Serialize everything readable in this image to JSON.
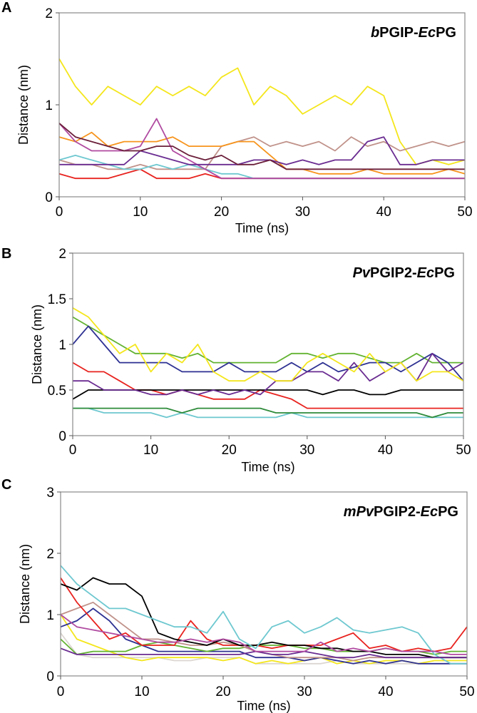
{
  "chart_data": [
    {
      "type": "line",
      "panel_label": "A",
      "title_parts": [
        {
          "text": "b",
          "italic": true
        },
        {
          "text": "PGIP-",
          "italic": false
        },
        {
          "text": "Ec",
          "italic": true
        },
        {
          "text": "PG",
          "italic": false
        }
      ],
      "xlabel": "Time (ns)",
      "ylabel": "Distance (nm)",
      "xlim": [
        0,
        50
      ],
      "ylim": [
        0,
        2
      ],
      "xticks": [
        0,
        10,
        20,
        30,
        40,
        50
      ],
      "yticks": [
        0,
        1,
        2
      ],
      "grid": false,
      "x": [
        0,
        2,
        4,
        6,
        8,
        10,
        12,
        14,
        16,
        18,
        20,
        22,
        24,
        26,
        28,
        30,
        32,
        34,
        36,
        38,
        40,
        42,
        44,
        46,
        48,
        50
      ],
      "series": [
        {
          "color": "#f4e61c",
          "values": [
            1.5,
            1.2,
            1.0,
            1.2,
            1.1,
            1.0,
            1.2,
            1.1,
            1.2,
            1.1,
            1.3,
            1.4,
            1.0,
            1.2,
            1.1,
            0.9,
            1.0,
            1.1,
            1.0,
            1.2,
            1.1,
            0.6,
            0.35,
            0.4,
            0.35,
            0.4
          ]
        },
        {
          "color": "#c0928a",
          "values": [
            0.4,
            0.35,
            0.35,
            0.3,
            0.3,
            0.35,
            0.3,
            0.3,
            0.3,
            0.3,
            0.55,
            0.6,
            0.65,
            0.55,
            0.6,
            0.55,
            0.6,
            0.5,
            0.65,
            0.55,
            0.6,
            0.5,
            0.55,
            0.6,
            0.55,
            0.6
          ]
        },
        {
          "color": "#f7941d",
          "values": [
            0.65,
            0.6,
            0.7,
            0.55,
            0.6,
            0.6,
            0.6,
            0.65,
            0.55,
            0.55,
            0.55,
            0.6,
            0.6,
            0.45,
            0.3,
            0.3,
            0.25,
            0.25,
            0.25,
            0.3,
            0.25,
            0.25,
            0.25,
            0.25,
            0.3,
            0.25
          ]
        },
        {
          "color": "#e8231f",
          "values": [
            0.25,
            0.2,
            0.2,
            0.2,
            0.25,
            0.3,
            0.2,
            0.2,
            0.2,
            0.25,
            0.2,
            0.2,
            0.2,
            0.2,
            0.2,
            0.2,
            0.2,
            0.2,
            0.2,
            0.2,
            0.2,
            0.2,
            0.2,
            0.2,
            0.2,
            0.2
          ]
        },
        {
          "color": "#6ec8d0",
          "values": [
            0.4,
            0.45,
            0.4,
            0.35,
            0.3,
            0.3,
            0.35,
            0.3,
            0.35,
            0.3,
            0.25,
            0.25,
            0.2,
            0.2,
            0.2,
            0.2,
            0.2,
            0.2,
            0.2,
            0.2,
            0.2,
            0.2,
            0.2,
            0.2,
            0.2,
            0.2
          ]
        },
        {
          "color": "#b04aa0",
          "values": [
            0.8,
            0.6,
            0.5,
            0.5,
            0.5,
            0.55,
            0.85,
            0.5,
            0.4,
            0.3,
            0.2,
            0.2,
            0.2,
            0.2,
            0.2,
            0.2,
            0.2,
            0.2,
            0.2,
            0.2,
            0.2,
            0.2,
            0.2,
            0.2,
            0.2,
            0.2
          ]
        },
        {
          "color": "#6a2c91",
          "values": [
            0.35,
            0.35,
            0.35,
            0.35,
            0.35,
            0.5,
            0.45,
            0.4,
            0.35,
            0.35,
            0.35,
            0.35,
            0.4,
            0.4,
            0.35,
            0.4,
            0.35,
            0.4,
            0.4,
            0.6,
            0.65,
            0.35,
            0.35,
            0.4,
            0.4,
            0.4
          ]
        },
        {
          "color": "#6b1f3a",
          "values": [
            0.8,
            0.65,
            0.6,
            0.55,
            0.5,
            0.5,
            0.55,
            0.55,
            0.45,
            0.4,
            0.45,
            0.35,
            0.35,
            0.4,
            0.3,
            0.3,
            0.3,
            0.3,
            0.3,
            0.3,
            0.3,
            0.3,
            0.3,
            0.3,
            0.3,
            0.3
          ]
        }
      ]
    },
    {
      "type": "line",
      "panel_label": "B",
      "title_parts": [
        {
          "text": "Pv",
          "italic": true
        },
        {
          "text": "PGIP2-",
          "italic": false
        },
        {
          "text": "Ec",
          "italic": true
        },
        {
          "text": "PG",
          "italic": false
        }
      ],
      "xlabel": "Time (ns)",
      "ylabel": "Distance (nm)",
      "xlim": [
        0,
        50
      ],
      "ylim": [
        0,
        2
      ],
      "xticks": [
        0,
        10,
        20,
        30,
        40,
        50
      ],
      "yticks": [
        0,
        0.5,
        1,
        1.5,
        2
      ],
      "grid": false,
      "x": [
        0,
        2,
        4,
        6,
        8,
        10,
        12,
        14,
        16,
        18,
        20,
        22,
        24,
        26,
        28,
        30,
        32,
        34,
        36,
        38,
        40,
        42,
        44,
        46,
        48,
        50
      ],
      "series": [
        {
          "color": "#6ec8d0",
          "values": [
            0.3,
            0.3,
            0.25,
            0.25,
            0.25,
            0.25,
            0.2,
            0.25,
            0.2,
            0.2,
            0.2,
            0.2,
            0.2,
            0.2,
            0.25,
            0.2,
            0.2,
            0.2,
            0.2,
            0.2,
            0.2,
            0.2,
            0.2,
            0.2,
            0.2,
            0.2
          ]
        },
        {
          "color": "#2e8b3a",
          "values": [
            0.3,
            0.3,
            0.3,
            0.3,
            0.3,
            0.3,
            0.3,
            0.25,
            0.3,
            0.3,
            0.3,
            0.3,
            0.3,
            0.25,
            0.25,
            0.25,
            0.25,
            0.25,
            0.25,
            0.25,
            0.25,
            0.25,
            0.25,
            0.2,
            0.25,
            0.25
          ]
        },
        {
          "color": "#62b332",
          "values": [
            1.3,
            1.2,
            1.1,
            1.0,
            0.9,
            0.9,
            0.9,
            0.85,
            0.9,
            0.8,
            0.8,
            0.8,
            0.8,
            0.8,
            0.9,
            0.9,
            0.85,
            0.9,
            0.9,
            0.85,
            0.8,
            0.8,
            0.9,
            0.8,
            0.8,
            0.8
          ]
        },
        {
          "color": "#e8231f",
          "values": [
            0.8,
            0.7,
            0.7,
            0.6,
            0.5,
            0.5,
            0.45,
            0.5,
            0.45,
            0.4,
            0.4,
            0.4,
            0.5,
            0.45,
            0.4,
            0.3,
            0.3,
            0.3,
            0.3,
            0.3,
            0.3,
            0.3,
            0.3,
            0.3,
            0.3,
            0.3
          ]
        },
        {
          "color": "#000000",
          "values": [
            0.4,
            0.5,
            0.5,
            0.5,
            0.5,
            0.5,
            0.5,
            0.5,
            0.5,
            0.5,
            0.5,
            0.5,
            0.5,
            0.5,
            0.5,
            0.5,
            0.45,
            0.5,
            0.5,
            0.45,
            0.45,
            0.5,
            0.5,
            0.5,
            0.5,
            0.5
          ]
        },
        {
          "color": "#2e3192",
          "values": [
            1.0,
            1.2,
            1.0,
            0.8,
            0.8,
            0.8,
            0.8,
            0.7,
            0.7,
            0.7,
            0.8,
            0.7,
            0.7,
            0.7,
            0.8,
            0.7,
            0.8,
            0.7,
            0.75,
            0.8,
            0.8,
            0.7,
            0.8,
            0.9,
            0.8,
            0.6
          ]
        },
        {
          "color": "#6a2c91",
          "values": [
            0.6,
            0.6,
            0.5,
            0.5,
            0.5,
            0.45,
            0.45,
            0.5,
            0.45,
            0.5,
            0.45,
            0.5,
            0.45,
            0.6,
            0.6,
            0.7,
            0.7,
            0.6,
            0.8,
            0.6,
            0.7,
            0.8,
            0.6,
            0.9,
            0.7,
            0.8
          ]
        },
        {
          "color": "#f4e61c",
          "values": [
            1.4,
            1.3,
            1.1,
            0.9,
            1.0,
            0.7,
            0.9,
            0.8,
            1.0,
            0.7,
            0.6,
            0.6,
            0.7,
            0.6,
            0.6,
            0.8,
            0.9,
            0.8,
            0.7,
            0.9,
            0.7,
            0.8,
            0.6,
            0.7,
            0.7,
            0.6
          ]
        }
      ]
    },
    {
      "type": "line",
      "panel_label": "C",
      "title_parts": [
        {
          "text": "mPv",
          "italic": true
        },
        {
          "text": "PGIP2-",
          "italic": false
        },
        {
          "text": "Ec",
          "italic": true
        },
        {
          "text": "PG",
          "italic": false
        }
      ],
      "xlabel": "Time (ns)",
      "ylabel": "Distance (nm)",
      "xlim": [
        0,
        50
      ],
      "ylim": [
        0,
        3
      ],
      "xticks": [
        0,
        10,
        20,
        30,
        40,
        50
      ],
      "yticks": [
        0,
        1,
        2,
        3
      ],
      "grid": false,
      "x": [
        0,
        2,
        4,
        6,
        8,
        10,
        12,
        14,
        16,
        18,
        20,
        22,
        24,
        26,
        28,
        30,
        32,
        34,
        36,
        38,
        40,
        42,
        44,
        46,
        48,
        50
      ],
      "series": [
        {
          "color": "#dcd6d2",
          "values": [
            0.7,
            0.35,
            0.3,
            0.3,
            0.3,
            0.3,
            0.3,
            0.25,
            0.25,
            0.3,
            0.3,
            0.3,
            0.2,
            0.2,
            0.2,
            0.2,
            0.2,
            0.25,
            0.2,
            0.2,
            0.2,
            0.2,
            0.2,
            0.2,
            0.2,
            0.2
          ]
        },
        {
          "color": "#f4e61c",
          "values": [
            1.0,
            0.6,
            0.5,
            0.4,
            0.3,
            0.25,
            0.3,
            0.3,
            0.3,
            0.3,
            0.25,
            0.3,
            0.2,
            0.25,
            0.2,
            0.25,
            0.3,
            0.2,
            0.25,
            0.2,
            0.25,
            0.25,
            0.2,
            0.25,
            0.25,
            0.25
          ]
        },
        {
          "color": "#2e3192",
          "values": [
            0.8,
            0.9,
            1.1,
            0.9,
            0.6,
            0.5,
            0.4,
            0.4,
            0.4,
            0.4,
            0.4,
            0.4,
            0.3,
            0.3,
            0.3,
            0.25,
            0.3,
            0.25,
            0.2,
            0.25,
            0.2,
            0.25,
            0.2,
            0.2,
            0.2,
            0.2
          ]
        },
        {
          "color": "#62b332",
          "values": [
            0.6,
            0.35,
            0.4,
            0.4,
            0.4,
            0.5,
            0.55,
            0.5,
            0.45,
            0.4,
            0.45,
            0.45,
            0.5,
            0.5,
            0.5,
            0.45,
            0.45,
            0.4,
            0.4,
            0.4,
            0.45,
            0.4,
            0.4,
            0.35,
            0.4,
            0.4
          ]
        },
        {
          "color": "#c0928a",
          "values": [
            1.0,
            1.1,
            1.2,
            1.0,
            0.8,
            0.6,
            0.6,
            0.55,
            0.5,
            0.5,
            0.55,
            0.5,
            0.4,
            0.35,
            0.3,
            0.3,
            0.3,
            0.3,
            0.25,
            0.3,
            0.3,
            0.3,
            0.3,
            0.3,
            0.3,
            0.3
          ]
        },
        {
          "color": "#e8231f",
          "values": [
            1.6,
            1.2,
            0.9,
            0.6,
            0.7,
            0.5,
            0.5,
            0.5,
            0.9,
            0.6,
            0.5,
            0.5,
            0.5,
            0.45,
            0.5,
            0.5,
            0.5,
            0.6,
            0.7,
            0.45,
            0.5,
            0.4,
            0.45,
            0.4,
            0.45,
            0.8
          ]
        },
        {
          "color": "#000000",
          "values": [
            1.5,
            1.4,
            1.6,
            1.5,
            1.5,
            1.3,
            0.7,
            0.6,
            0.55,
            0.5,
            0.6,
            0.5,
            0.5,
            0.55,
            0.5,
            0.5,
            0.45,
            0.45,
            0.4,
            0.4,
            0.35,
            0.35,
            0.35,
            0.3,
            0.3,
            0.3
          ]
        },
        {
          "color": "#6ec8d0",
          "values": [
            1.8,
            1.5,
            1.3,
            1.1,
            1.1,
            1.0,
            0.9,
            0.8,
            0.8,
            0.7,
            1.05,
            0.6,
            0.45,
            0.8,
            0.9,
            0.7,
            0.8,
            0.95,
            0.75,
            0.7,
            0.75,
            0.8,
            0.7,
            0.35,
            0.2,
            0.2
          ]
        },
        {
          "color": "#6a2c91",
          "values": [
            0.45,
            0.35,
            0.35,
            0.35,
            0.35,
            0.35,
            0.35,
            0.35,
            0.35,
            0.35,
            0.35,
            0.35,
            0.4,
            0.35,
            0.35,
            0.4,
            0.35,
            0.3,
            0.3,
            0.35,
            0.3,
            0.3,
            0.3,
            0.3,
            0.3,
            0.3
          ]
        },
        {
          "color": "#b04aa0",
          "values": [
            1.0,
            0.8,
            0.75,
            0.7,
            0.65,
            0.6,
            0.55,
            0.55,
            0.6,
            0.55,
            0.6,
            0.55,
            0.4,
            0.4,
            0.4,
            0.4,
            0.55,
            0.4,
            0.45,
            0.4,
            0.45,
            0.4,
            0.4,
            0.4,
            0.35,
            0.35
          ]
        }
      ]
    }
  ]
}
